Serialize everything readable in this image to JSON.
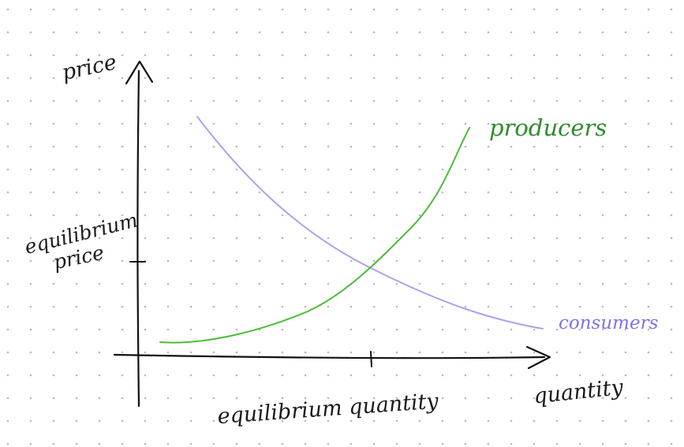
{
  "labels": {
    "price_axis": "price",
    "quantity_axis": "quantity",
    "equilibrium_price_line1": "equilibrium",
    "equilibrium_price_line2": "price",
    "equilibrium_quantity": "equilibrium quantity",
    "producers": "producers",
    "consumers": "consumers"
  },
  "colors": {
    "axes": "#111111",
    "producers": "#4cbb3a",
    "producers_text": "#2e8b2e",
    "consumers": "#a8a3ee",
    "consumers_text": "#7b73e6",
    "grid_dot": "#b9b9b9"
  },
  "background": {
    "style": "dot-grid"
  }
}
